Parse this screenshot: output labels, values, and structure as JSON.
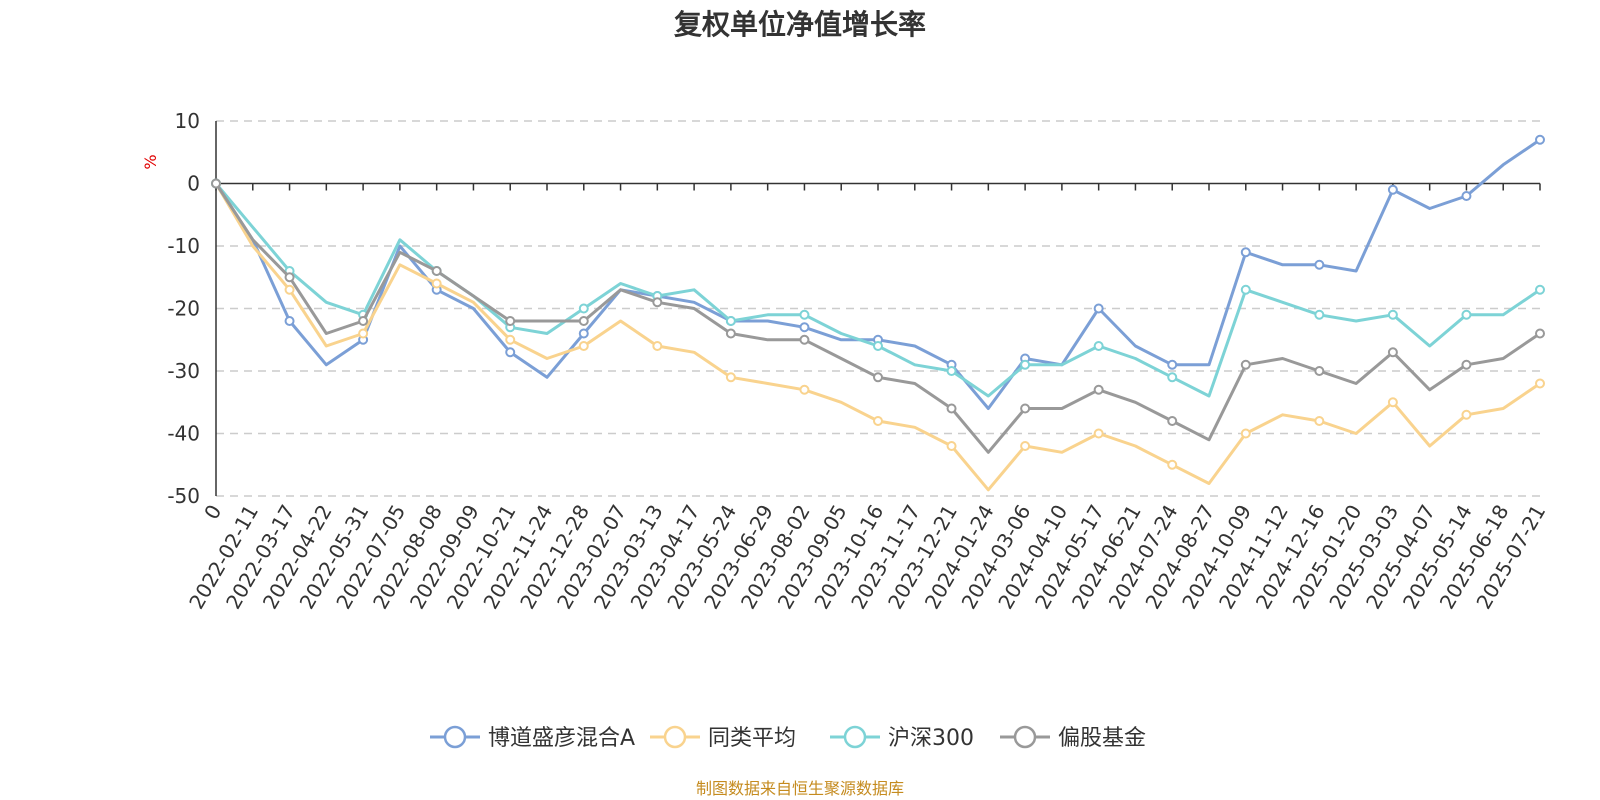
{
  "chart_data": {
    "type": "line",
    "title": "复权单位净值增长率",
    "yunit": "%",
    "ylim": [
      -50,
      10
    ],
    "yticks": [
      10,
      0,
      -10,
      -20,
      -30,
      -40,
      -50
    ],
    "xticks": [
      "0",
      "2022-02-11",
      "2022-03-17",
      "2022-04-22",
      "2022-05-31",
      "2022-07-05",
      "2022-08-08",
      "2022-09-09",
      "2022-10-21",
      "2022-11-24",
      "2022-12-28",
      "2023-02-07",
      "2023-03-13",
      "2023-04-17",
      "2023-05-24",
      "2023-06-29",
      "2023-08-02",
      "2023-09-05",
      "2023-10-16",
      "2023-11-17",
      "2023-12-21",
      "2024-01-24",
      "2024-03-06",
      "2024-04-10",
      "2024-05-17",
      "2024-06-21",
      "2024-07-24",
      "2024-08-27",
      "2024-10-09",
      "2024-11-12",
      "2024-12-16",
      "2025-01-20",
      "2025-03-03",
      "2025-04-07",
      "2025-05-14",
      "2025-06-18",
      "2025-07-21"
    ],
    "grid": "horizontal dashed",
    "legend_position": "bottom",
    "source_note": "制图数据来自恒生聚源数据库",
    "series": [
      {
        "name": "博道盛彦混合A",
        "color": "#7b9fd6",
        "values": [
          0,
          -9,
          -22,
          -29,
          -25,
          -10,
          -17,
          -20,
          -27,
          -31,
          -24,
          -17,
          -18,
          -19,
          -22,
          -22,
          -23,
          -25,
          -25,
          -26,
          -29,
          -36,
          -28,
          -29,
          -20,
          -26,
          -29,
          -29,
          -11,
          -13,
          -13,
          -14,
          -1,
          -4,
          -2,
          3,
          7
        ]
      },
      {
        "name": "同类平均",
        "color": "#f9d38e",
        "values": [
          0,
          -10,
          -17,
          -26,
          -24,
          -13,
          -16,
          -19,
          -25,
          -28,
          -26,
          -22,
          -26,
          -27,
          -31,
          -32,
          -33,
          -35,
          -38,
          -39,
          -42,
          -49,
          -42,
          -43,
          -40,
          -42,
          -45,
          -48,
          -40,
          -37,
          -38,
          -40,
          -35,
          -42,
          -37,
          -36,
          -32
        ]
      },
      {
        "name": "沪深300",
        "color": "#7dd3d6",
        "values": [
          0,
          -7,
          -14,
          -19,
          -21,
          -9,
          -14,
          -18,
          -23,
          -24,
          -20,
          -16,
          -18,
          -17,
          -22,
          -21,
          -21,
          -24,
          -26,
          -29,
          -30,
          -34,
          -29,
          -29,
          -26,
          -28,
          -31,
          -34,
          -17,
          -19,
          -21,
          -22,
          -21,
          -26,
          -21,
          -21,
          -17
        ]
      },
      {
        "name": "偏股基金",
        "color": "#999999",
        "values": [
          0,
          -9,
          -15,
          -24,
          -22,
          -11,
          -14,
          -18,
          -22,
          -22,
          -22,
          -17,
          -19,
          -20,
          -24,
          -25,
          -25,
          -28,
          -31,
          -32,
          -36,
          -43,
          -36,
          -36,
          -33,
          -35,
          -38,
          -41,
          -29,
          -28,
          -30,
          -32,
          -27,
          -33,
          -29,
          -28,
          -24
        ]
      }
    ]
  }
}
